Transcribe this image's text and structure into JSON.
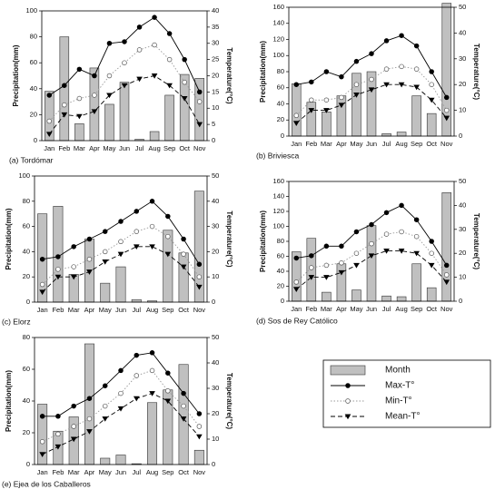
{
  "legend": [
    {
      "name": "Month",
      "mark": "bar",
      "color": "#c0c0c0"
    },
    {
      "name": "Max-T°",
      "mark": "line",
      "color": "#000000",
      "marker": "filled-circle",
      "dash": "solid"
    },
    {
      "name": "Min-T°",
      "mark": "line",
      "color": "#9a9a9a",
      "marker": "open-circle",
      "dash": "dotted"
    },
    {
      "name": "Mean-T°",
      "mark": "line",
      "color": "#000000",
      "marker": "triangle-down",
      "dash": "dashed"
    }
  ],
  "chart_data": [
    {
      "type": "climate",
      "caption": "(a) Tordómar",
      "ylabel": "Precipitation(mm)",
      "y2label": "Temperature(°C)",
      "categories": [
        "Jan",
        "Feb",
        "Mar",
        "Apr",
        "May",
        "Jun",
        "Jul",
        "Aug",
        "Sep",
        "Oct",
        "Nov"
      ],
      "ylim": [
        0,
        100
      ],
      "yticks": [
        0,
        20,
        40,
        60,
        80,
        100
      ],
      "y2lim": [
        0,
        40
      ],
      "y2ticks": [
        0,
        5,
        10,
        15,
        20,
        25,
        30,
        35,
        40
      ],
      "series": [
        {
          "values": [
            38,
            80,
            13,
            56,
            28,
            45,
            1,
            7,
            35,
            51,
            48
          ]
        },
        {
          "axis": "y2",
          "values": [
            14,
            17,
            22,
            20,
            30,
            30.5,
            35,
            38,
            33,
            25,
            15
          ]
        },
        {
          "axis": "y2",
          "values": [
            6,
            11,
            13,
            14,
            20,
            24,
            28,
            29.5,
            25,
            18,
            12
          ]
        },
        {
          "axis": "y2",
          "values": [
            2,
            8,
            7.5,
            9,
            14,
            17,
            19,
            20,
            17,
            13,
            5
          ]
        }
      ]
    },
    {
      "type": "climate",
      "caption": "(b) Briviesca",
      "ylabel": "Precipitation(mm)",
      "y2label": "Temperature(°C)",
      "categories": [
        "Jan",
        "Feb",
        "Mar",
        "Apr",
        "May",
        "Jun",
        "Jul",
        "Aug",
        "Sep",
        "Oct",
        "Nov"
      ],
      "ylim": [
        0,
        160
      ],
      "yticks": [
        0,
        20,
        40,
        60,
        80,
        100,
        120,
        140,
        160
      ],
      "y2lim": [
        0,
        50
      ],
      "y2ticks": [
        0,
        10,
        20,
        30,
        40,
        50
      ],
      "series": [
        {
          "values": [
            65,
            42,
            30,
            50,
            78,
            80,
            3,
            5,
            50,
            28,
            165
          ]
        },
        {
          "axis": "y2",
          "values": [
            20,
            21,
            25,
            23,
            29,
            32,
            37,
            39,
            35,
            25,
            15
          ]
        },
        {
          "axis": "y2",
          "values": [
            8,
            14,
            14,
            15,
            20,
            22,
            26,
            27,
            26,
            20,
            10
          ]
        },
        {
          "axis": "y2",
          "values": [
            5,
            10,
            10,
            12,
            16,
            18,
            20,
            20,
            19,
            14,
            7
          ]
        }
      ]
    },
    {
      "type": "climate",
      "caption": "(c) Elorz",
      "ylabel": "Precipitation(mm)",
      "y2label": "Temperature(°C)",
      "categories": [
        "Jan",
        "Feb",
        "Mar",
        "Apr",
        "May",
        "Jun",
        "Jul",
        "Aug",
        "Sep",
        "Oct",
        "Nov"
      ],
      "ylim": [
        0,
        100
      ],
      "yticks": [
        0,
        20,
        40,
        60,
        80,
        100
      ],
      "y2lim": [
        0,
        50
      ],
      "y2ticks": [
        0,
        10,
        20,
        30,
        40,
        50
      ],
      "series": [
        {
          "values": [
            70,
            76,
            22,
            50,
            15,
            28,
            2,
            1,
            57,
            39,
            88
          ]
        },
        {
          "axis": "y2",
          "values": [
            17,
            18,
            22,
            25,
            28,
            32,
            36,
            40,
            34,
            25,
            15
          ]
        },
        {
          "axis": "y2",
          "values": [
            7,
            13,
            14,
            17,
            20,
            24,
            28,
            30,
            26,
            19,
            10
          ]
        },
        {
          "axis": "y2",
          "values": [
            4,
            10,
            10,
            12,
            16,
            19,
            22,
            22,
            19,
            14,
            6
          ]
        }
      ]
    },
    {
      "type": "climate",
      "caption": "(d) Sos de Rey Católico",
      "ylabel": "Precipitation(mm)",
      "y2label": "Temperature(°C)",
      "categories": [
        "Jan",
        "Feb",
        "Mar",
        "Apr",
        "May",
        "Jun",
        "Jul",
        "Aug",
        "Sep",
        "Oct",
        "Nov"
      ],
      "ylim": [
        0,
        160
      ],
      "yticks": [
        0,
        20,
        40,
        60,
        80,
        100,
        120,
        140,
        160
      ],
      "y2lim": [
        0,
        50
      ],
      "y2ticks": [
        0,
        10,
        20,
        30,
        40,
        50
      ],
      "series": [
        {
          "values": [
            66,
            84,
            12,
            50,
            15,
            101,
            7,
            6,
            50,
            18,
            145
          ]
        },
        {
          "axis": "y2",
          "values": [
            18,
            19,
            23,
            23,
            29,
            32,
            37,
            40,
            34,
            25,
            15
          ]
        },
        {
          "axis": "y2",
          "values": [
            8,
            14,
            15,
            16,
            20,
            24,
            28,
            29,
            27,
            20,
            11
          ]
        },
        {
          "axis": "y2",
          "values": [
            5,
            10,
            10,
            12,
            15,
            19,
            21,
            21,
            20,
            15,
            8
          ]
        }
      ]
    },
    {
      "type": "climate",
      "caption": "(e) Ejea de los Caballeros",
      "ylabel": "Precipitation(mm)",
      "y2label": "Temperature(°C)",
      "categories": [
        "Jan",
        "Feb",
        "Mar",
        "Apr",
        "May",
        "Jun",
        "Jul",
        "Aug",
        "Sep",
        "Oct",
        "Nov"
      ],
      "ylim": [
        0,
        80
      ],
      "yticks": [
        0,
        20,
        40,
        60,
        80
      ],
      "y2lim": [
        0,
        50
      ],
      "y2ticks": [
        0,
        10,
        20,
        30,
        40,
        50
      ],
      "series": [
        {
          "values": [
            38,
            21,
            30,
            76,
            4,
            6,
            0.5,
            39,
            47,
            63,
            9
          ]
        },
        {
          "axis": "y2",
          "values": [
            19,
            19,
            23,
            26,
            31,
            37,
            43,
            44,
            36,
            28,
            20
          ]
        },
        {
          "axis": "y2",
          "values": [
            9,
            12,
            15,
            18,
            23,
            28,
            35,
            37,
            29,
            23,
            15
          ]
        },
        {
          "axis": "y2",
          "values": [
            4,
            7,
            10,
            13,
            18,
            22,
            26,
            28,
            25,
            18,
            11
          ]
        }
      ]
    }
  ]
}
